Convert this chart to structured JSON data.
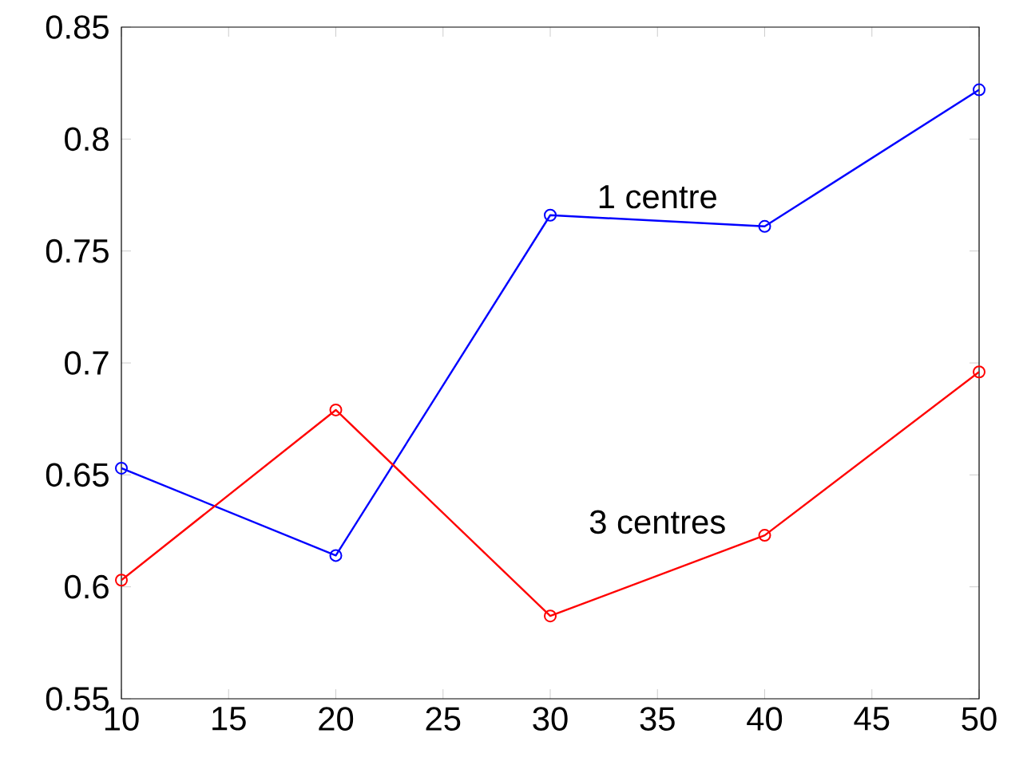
{
  "chart_data": {
    "type": "line",
    "x": [
      10,
      20,
      30,
      40,
      50
    ],
    "series": [
      {
        "name": "1 centre",
        "color": "#0000ff",
        "values": [
          0.653,
          0.614,
          0.766,
          0.761,
          0.822
        ]
      },
      {
        "name": "3 centres",
        "color": "#ff0000",
        "values": [
          0.603,
          0.679,
          0.587,
          0.623,
          0.696
        ]
      }
    ],
    "xlim": [
      10,
      50
    ],
    "ylim": [
      0.55,
      0.85
    ],
    "xticks": [
      10,
      15,
      20,
      25,
      30,
      35,
      40,
      45,
      50
    ],
    "yticks": [
      0.55,
      0.6,
      0.65,
      0.7,
      0.75,
      0.8,
      0.85
    ],
    "grid": false,
    "marker": "circle",
    "line_style": "solid"
  }
}
